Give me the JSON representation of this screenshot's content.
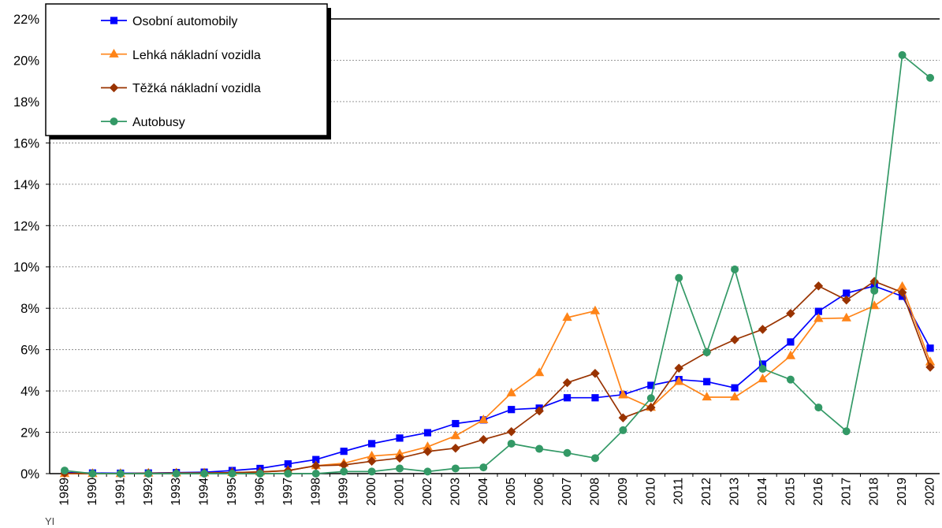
{
  "chart_data": {
    "type": "line",
    "title": "",
    "xlabel": "",
    "ylabel": "",
    "categories": [
      "1989",
      "1990",
      "1991",
      "1992",
      "1993",
      "1994",
      "1995",
      "1996",
      "1997",
      "1998",
      "1999",
      "2000",
      "2001",
      "2002",
      "2003",
      "2004",
      "2005",
      "2006",
      "2007",
      "2008",
      "2009",
      "2010",
      "2011",
      "2012",
      "2013",
      "2014",
      "2015",
      "2016",
      "2017",
      "2018",
      "2019",
      "2020"
    ],
    "ylim": [
      0,
      22
    ],
    "yticks": [
      0,
      2,
      4,
      6,
      8,
      10,
      12,
      14,
      16,
      18,
      20,
      22
    ],
    "ytick_labels": [
      "0%",
      "2%",
      "4%",
      "6%",
      "8%",
      "10%",
      "12%",
      "14%",
      "16%",
      "18%",
      "20%",
      "22%"
    ],
    "y_unit": "percent",
    "grid": true,
    "grid_style": "dashed horizontal",
    "legend_position": "top-left",
    "series": [
      {
        "name": "Osobní automobily",
        "color": "#0000ff",
        "marker": "square",
        "values": [
          0.05,
          0.03,
          0.02,
          0.03,
          0.05,
          0.07,
          0.15,
          0.25,
          0.47,
          0.68,
          1.08,
          1.45,
          1.72,
          1.98,
          2.42,
          2.6,
          3.1,
          3.17,
          3.67,
          3.67,
          3.82,
          4.27,
          4.55,
          4.45,
          4.15,
          5.3,
          6.37,
          7.85,
          8.73,
          9.08,
          8.58,
          6.07
        ]
      },
      {
        "name": "Lehká nákladní vozidla",
        "color": "#ff8418",
        "marker": "triangle",
        "values": [
          0.0,
          0.0,
          0.0,
          0.02,
          0.03,
          0.03,
          0.05,
          0.08,
          0.15,
          0.38,
          0.5,
          0.85,
          0.95,
          1.3,
          1.83,
          2.6,
          3.9,
          4.88,
          7.55,
          7.87,
          3.8,
          3.2,
          4.45,
          3.7,
          3.7,
          4.58,
          5.7,
          7.5,
          7.53,
          8.12,
          9.05,
          5.4
        ]
      },
      {
        "name": "Těžká nákladní vozidla",
        "color": "#993300",
        "marker": "diamond",
        "values": [
          0.02,
          0.0,
          0.0,
          0.02,
          0.03,
          0.03,
          0.05,
          0.08,
          0.15,
          0.38,
          0.42,
          0.6,
          0.75,
          1.07,
          1.23,
          1.65,
          2.03,
          3.03,
          4.4,
          4.85,
          2.7,
          3.2,
          5.1,
          5.87,
          6.48,
          6.98,
          7.75,
          9.08,
          8.4,
          9.3,
          8.77,
          5.15
        ]
      },
      {
        "name": "Autobusy",
        "color": "#339966",
        "marker": "circle",
        "values": [
          0.15,
          0.0,
          0.0,
          0.0,
          0.0,
          0.0,
          0.0,
          0.0,
          0.0,
          0.0,
          0.1,
          0.1,
          0.25,
          0.1,
          0.25,
          0.3,
          1.45,
          1.2,
          1.0,
          0.75,
          2.1,
          3.65,
          9.47,
          5.87,
          9.88,
          5.07,
          4.55,
          3.2,
          2.05,
          8.85,
          20.25,
          19.15
        ]
      }
    ]
  },
  "footnote": "YI"
}
